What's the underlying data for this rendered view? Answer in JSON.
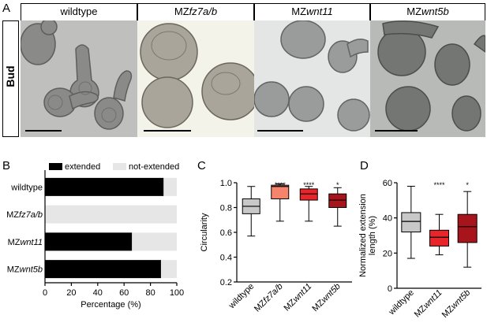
{
  "panel_labels": {
    "a": "A",
    "b": "B",
    "c": "C",
    "d": "D"
  },
  "panel_a": {
    "row_label": "Bud",
    "columns": [
      {
        "prefix": "wildtype",
        "gene": ""
      },
      {
        "prefix": "MZ",
        "gene": "fz7a/b"
      },
      {
        "prefix": "MZ",
        "gene": "wnt11"
      },
      {
        "prefix": "MZ",
        "gene": "wnt5b"
      }
    ]
  },
  "chart_data": [
    {
      "type": "bar",
      "orientation": "horizontal",
      "stacked": true,
      "categories": [
        {
          "prefix": "wildtype",
          "gene": ""
        },
        {
          "prefix": "MZ",
          "gene": "fz7a/b"
        },
        {
          "prefix": "MZ",
          "gene": "wnt11"
        },
        {
          "prefix": "MZ",
          "gene": "wnt5b"
        }
      ],
      "series": [
        {
          "name": "extended",
          "values": [
            90,
            0,
            66,
            88
          ],
          "color": "#000000"
        },
        {
          "name": "not-extended",
          "values": [
            10,
            100,
            34,
            12
          ],
          "color": "#e6e6e6"
        }
      ],
      "xlabel": "Percentage (%)",
      "xlim": [
        0,
        100
      ],
      "xticks": [
        0,
        20,
        40,
        60,
        80,
        100
      ],
      "legend": "top"
    },
    {
      "type": "box",
      "ylabel": "Circularity",
      "ylim": [
        0.2,
        1.0
      ],
      "yticks": [
        "0.2",
        "0.4",
        "0.6",
        "0.8",
        "1.0"
      ],
      "categories": [
        {
          "prefix": "wildtype",
          "gene": ""
        },
        {
          "prefix": "MZ",
          "gene": "fz7a/b"
        },
        {
          "prefix": "MZ",
          "gene": "wnt11"
        },
        {
          "prefix": "MZ",
          "gene": "wnt5b"
        }
      ],
      "boxes": [
        {
          "min": 0.57,
          "q1": 0.75,
          "median": 0.81,
          "q3": 0.87,
          "max": 0.97,
          "color": "#c8c8c8",
          "sig": ""
        },
        {
          "min": 0.69,
          "q1": 0.87,
          "median": 0.97,
          "q3": 0.98,
          "max": 0.99,
          "color": "#f4846c",
          "sig": "****"
        },
        {
          "min": 0.69,
          "q1": 0.86,
          "median": 0.91,
          "q3": 0.95,
          "max": 0.97,
          "color": "#e8262a",
          "sig": "****"
        },
        {
          "min": 0.65,
          "q1": 0.8,
          "median": 0.86,
          "q3": 0.91,
          "max": 0.96,
          "color": "#a8141c",
          "sig": "*"
        }
      ]
    },
    {
      "type": "box",
      "ylabel_lines": [
        "Normalized extension",
        "length (%)"
      ],
      "ylim": [
        0,
        60
      ],
      "yticks": [
        "0",
        "20",
        "40",
        "60"
      ],
      "categories": [
        {
          "prefix": "wildtype",
          "gene": ""
        },
        {
          "prefix": "MZ",
          "gene": "wnt11"
        },
        {
          "prefix": "MZ",
          "gene": "wnt5b"
        }
      ],
      "boxes": [
        {
          "min": 17,
          "q1": 32,
          "median": 38,
          "q3": 43,
          "max": 58,
          "color": "#c8c8c8",
          "sig": ""
        },
        {
          "min": 19,
          "q1": 24,
          "median": 29,
          "q3": 33,
          "max": 42,
          "color": "#e8262a",
          "sig": "****"
        },
        {
          "min": 12,
          "q1": 26,
          "median": 35,
          "q3": 42,
          "max": 55,
          "color": "#a8141c",
          "sig": "*"
        }
      ]
    }
  ]
}
